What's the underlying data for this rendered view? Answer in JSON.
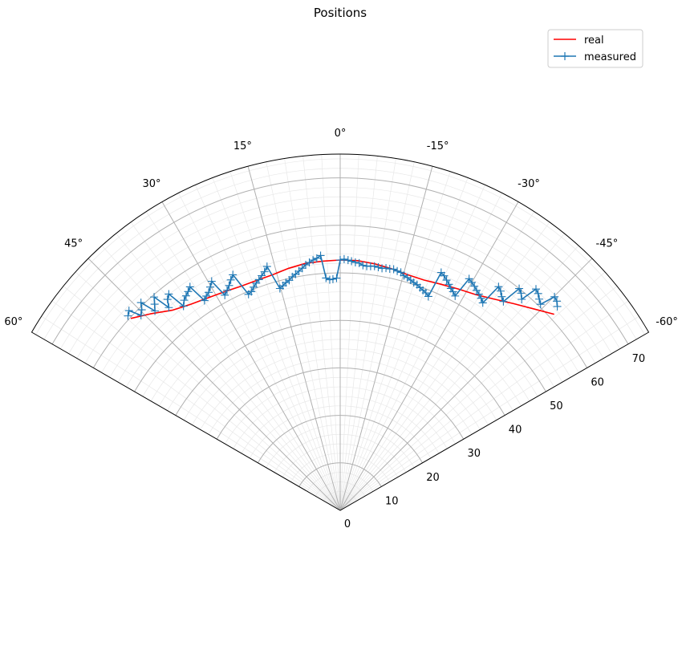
{
  "chart_data": {
    "type": "line",
    "projection": "polar",
    "title": "Positions",
    "theta_range_deg": [
      -60,
      60
    ],
    "theta_zero": "top",
    "theta_direction": "counterclockwise",
    "theta_ticks": [
      {
        "value": 60,
        "label": "60°"
      },
      {
        "value": 45,
        "label": "45°"
      },
      {
        "value": 30,
        "label": "30°"
      },
      {
        "value": 15,
        "label": "15°"
      },
      {
        "value": 0,
        "label": "0°"
      },
      {
        "value": -15,
        "label": "-15°"
      },
      {
        "value": -30,
        "label": "-30°"
      },
      {
        "value": -45,
        "label": "-45°"
      },
      {
        "value": -60,
        "label": "-60°"
      }
    ],
    "r_range": [
      0,
      75
    ],
    "r_ticks": [
      {
        "value": 0,
        "label": "0"
      },
      {
        "value": 10,
        "label": "10"
      },
      {
        "value": 20,
        "label": "20"
      },
      {
        "value": 30,
        "label": "30"
      },
      {
        "value": 40,
        "label": "40"
      },
      {
        "value": 50,
        "label": "50"
      },
      {
        "value": 60,
        "label": "60"
      },
      {
        "value": 70,
        "label": "70"
      }
    ],
    "grid": true,
    "minor_grid": true,
    "legend_position": "top-right",
    "series": [
      {
        "name": "real",
        "color": "#ff0000",
        "marker": "none",
        "points": [
          [
            47.5,
            59.8
          ],
          [
            44,
            57.5
          ],
          [
            40,
            55
          ],
          [
            36,
            53.6
          ],
          [
            32,
            52.7
          ],
          [
            28,
            52.1
          ],
          [
            24,
            51.6
          ],
          [
            20,
            51.5
          ],
          [
            16,
            51.6
          ],
          [
            12,
            52.1
          ],
          [
            8,
            52.5
          ],
          [
            4,
            52.6
          ],
          [
            0,
            52.7
          ],
          [
            -4,
            52.7
          ],
          [
            -8,
            52.4
          ],
          [
            -12,
            52
          ],
          [
            -16,
            51.6
          ],
          [
            -20,
            51.6
          ],
          [
            -24,
            52.1
          ],
          [
            -28,
            52.8
          ],
          [
            -32,
            53.6
          ],
          [
            -36,
            55
          ],
          [
            -40,
            56.8
          ],
          [
            -44,
            58.9
          ],
          [
            -47.5,
            61.1
          ]
        ]
      },
      {
        "name": "measured",
        "color": "#1f77b4",
        "marker": "+",
        "points": [
          [
            47.5,
            60.6
          ],
          [
            46.6,
            61.2
          ],
          [
            45.6,
            58.7
          ],
          [
            44.7,
            59.4
          ],
          [
            43.8,
            60.6
          ],
          [
            42.9,
            57.3
          ],
          [
            42.0,
            58.4
          ],
          [
            41.1,
            59.6
          ],
          [
            40.2,
            55.9
          ],
          [
            39.3,
            57.4
          ],
          [
            38.4,
            58.1
          ],
          [
            37.5,
            54.2
          ],
          [
            36.6,
            55.1
          ],
          [
            35.7,
            55.6
          ],
          [
            34.8,
            56.1
          ],
          [
            33.9,
            56.7
          ],
          [
            32.9,
            52.6
          ],
          [
            32.0,
            53.2
          ],
          [
            31.1,
            53.6
          ],
          [
            30.2,
            54.4
          ],
          [
            29.3,
            55.3
          ],
          [
            28.2,
            51.4
          ],
          [
            27.2,
            52.1
          ],
          [
            26.3,
            52.8
          ],
          [
            25.4,
            53.7
          ],
          [
            24.5,
            54.5
          ],
          [
            23.0,
            49.4
          ],
          [
            22.1,
            49.7
          ],
          [
            21.2,
            50.4
          ],
          [
            20.3,
            51.0
          ],
          [
            19.4,
            51.5
          ],
          [
            18.5,
            52.1
          ],
          [
            17.6,
            52.7
          ],
          [
            16.7,
            53.6
          ],
          [
            15.2,
            48.4
          ],
          [
            14.3,
            48.8
          ],
          [
            13.4,
            49.3
          ],
          [
            12.5,
            49.6
          ],
          [
            11.6,
            50.2
          ],
          [
            10.7,
            50.6
          ],
          [
            9.8,
            51.1
          ],
          [
            8.9,
            51.6
          ],
          [
            8.0,
            52.2
          ],
          [
            7.1,
            52.6
          ],
          [
            6.2,
            53.0
          ],
          [
            5.3,
            53.3
          ],
          [
            4.4,
            53.8
          ],
          [
            3.5,
            49.0
          ],
          [
            2.6,
            48.6
          ],
          [
            1.8,
            48.7
          ],
          [
            0.9,
            48.9
          ],
          [
            0,
            52.7
          ],
          [
            -0.9,
            52.9
          ],
          [
            -1.8,
            52.7
          ],
          [
            -2.6,
            52.5
          ],
          [
            -3.5,
            52.3
          ],
          [
            -4.4,
            52.2
          ],
          [
            -5.3,
            51.8
          ],
          [
            -6.2,
            51.7
          ],
          [
            -7.1,
            51.8
          ],
          [
            -8.0,
            51.9
          ],
          [
            -8.9,
            51.8
          ],
          [
            -9.8,
            51.7
          ],
          [
            -10.7,
            51.9
          ],
          [
            -11.6,
            51.9
          ],
          [
            -12.5,
            52.0
          ],
          [
            -13.4,
            51.8
          ],
          [
            -14.3,
            51.7
          ],
          [
            -15.2,
            51.2
          ],
          [
            -16.1,
            51.0
          ],
          [
            -17.0,
            50.7
          ],
          [
            -17.9,
            50.4
          ],
          [
            -18.8,
            50.2
          ],
          [
            -19.7,
            49.8
          ],
          [
            -20.6,
            49.5
          ],
          [
            -21.5,
            49.2
          ],
          [
            -22.4,
            48.7
          ],
          [
            -23.0,
            54.4
          ],
          [
            -23.9,
            54.0
          ],
          [
            -24.8,
            53.4
          ],
          [
            -25.7,
            52.8
          ],
          [
            -26.5,
            52.2
          ],
          [
            -27.3,
            51.8
          ],
          [
            -28.2,
            51.2
          ],
          [
            -29.1,
            55.8
          ],
          [
            -30.0,
            55.4
          ],
          [
            -30.9,
            55.0
          ],
          [
            -31.8,
            54.5
          ],
          [
            -32.7,
            54.1
          ],
          [
            -33.6,
            53.6
          ],
          [
            -34.5,
            53.0
          ],
          [
            -35.3,
            57.7
          ],
          [
            -36.2,
            57.2
          ],
          [
            -37.1,
            56.4
          ],
          [
            -38.0,
            55.8
          ],
          [
            -38.9,
            60.0
          ],
          [
            -39.8,
            59.5
          ],
          [
            -40.7,
            58.6
          ],
          [
            -41.5,
            62.2
          ],
          [
            -42.4,
            61.8
          ],
          [
            -43.3,
            61.1
          ],
          [
            -44.2,
            60.5
          ],
          [
            -45.1,
            63.7
          ],
          [
            -46.0,
            63.4
          ],
          [
            -46.8,
            62.7
          ]
        ]
      }
    ]
  }
}
